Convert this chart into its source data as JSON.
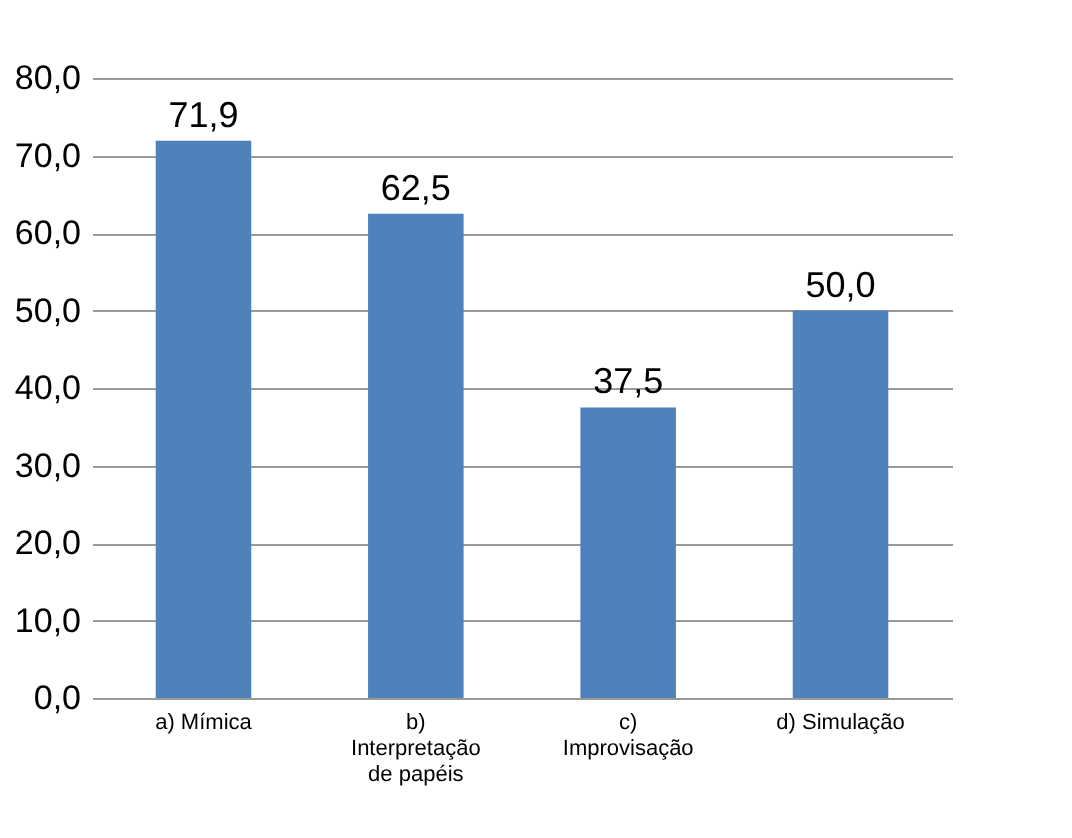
{
  "chart_data": {
    "type": "bar",
    "categories": [
      "a) Mímica",
      "b) Interpretação de papéis",
      "c) Improvisação",
      "d) Simulação"
    ],
    "values": [
      71.9,
      62.5,
      37.5,
      50.0
    ],
    "value_labels": [
      "71,9",
      "62,5",
      "37,5",
      "50,0"
    ],
    "color": "#4f81bd",
    "ylim": [
      0,
      80
    ],
    "yticks": [
      {
        "value": 0,
        "label": "0,0"
      },
      {
        "value": 10,
        "label": "10,0"
      },
      {
        "value": 20,
        "label": "20,0"
      },
      {
        "value": 30,
        "label": "30,0"
      },
      {
        "value": 40,
        "label": "40,0"
      },
      {
        "value": 50,
        "label": "50,0"
      },
      {
        "value": 60,
        "label": "60,0"
      },
      {
        "value": 70,
        "label": "70,0"
      },
      {
        "value": 80,
        "label": "80,0"
      }
    ],
    "grid": "y"
  }
}
